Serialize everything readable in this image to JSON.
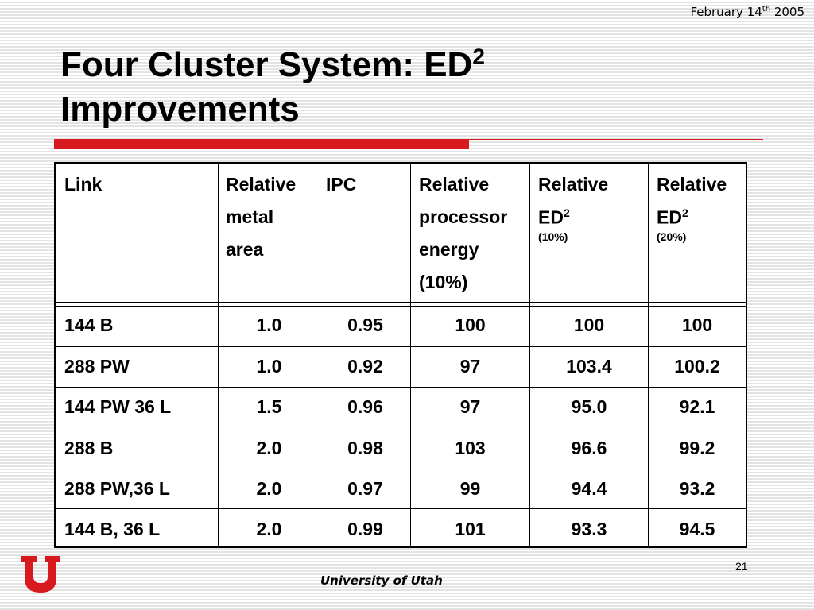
{
  "header": {
    "date_prefix": "February 14",
    "date_sup": "th",
    "date_suffix": " 2005"
  },
  "title": {
    "line1": "Four Cluster System: ED",
    "line1_sup": "2",
    "line2": "Improvements"
  },
  "table": {
    "headers": [
      {
        "lines": [
          "Link"
        ]
      },
      {
        "lines": [
          "Relative",
          "metal",
          "area"
        ]
      },
      {
        "lines": [
          "IPC"
        ]
      },
      {
        "lines": [
          "Relative",
          "processor",
          "energy",
          "(10%)"
        ]
      },
      {
        "main": "Relative",
        "ed": "ED",
        "sup": "2",
        "note": "(10%)"
      },
      {
        "main": "Relative",
        "ed": "ED",
        "sup": "2",
        "note": "(20%)"
      }
    ],
    "rows": [
      [
        "144 B",
        "1.0",
        "0.95",
        "100",
        "100",
        "100"
      ],
      [
        "288 PW",
        "1.0",
        "0.92",
        "97",
        "103.4",
        "100.2"
      ],
      [
        "144 PW 36 L",
        "1.5",
        "0.96",
        "97",
        "95.0",
        "92.1"
      ],
      [
        "288 B",
        "2.0",
        "0.98",
        "103",
        "96.6",
        "99.2"
      ],
      [
        "288 PW,36 L",
        "2.0",
        "0.97",
        "99",
        "94.4",
        "93.2"
      ],
      [
        "144 B, 36 L",
        "2.0",
        "0.99",
        "101",
        "93.3",
        "94.5"
      ]
    ]
  },
  "footer": {
    "university": "University of Utah",
    "page_number": "21"
  },
  "logo": {
    "letter": "U",
    "color": "#d8191e"
  }
}
